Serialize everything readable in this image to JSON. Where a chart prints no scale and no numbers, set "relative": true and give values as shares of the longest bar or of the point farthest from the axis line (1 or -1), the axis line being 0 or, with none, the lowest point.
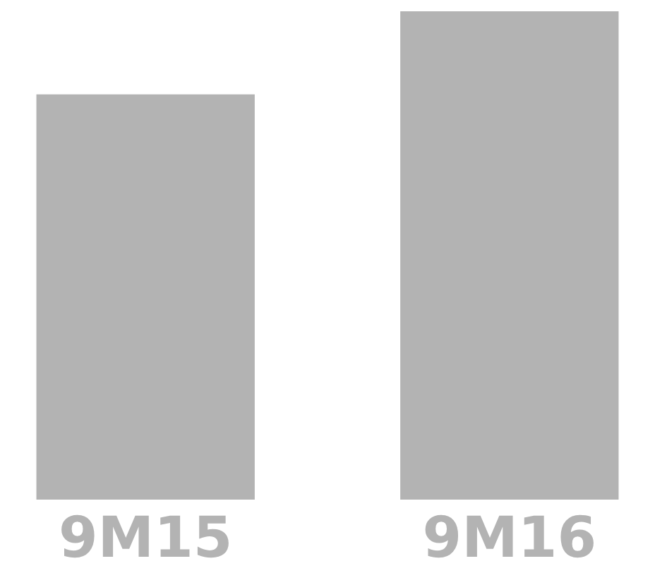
{
  "chart_data": {
    "type": "bar",
    "relative": true,
    "categories": [
      "9M15",
      "9M16"
    ],
    "values": [
      0.83,
      1
    ],
    "color": "#b3b3b3",
    "grid": false
  }
}
